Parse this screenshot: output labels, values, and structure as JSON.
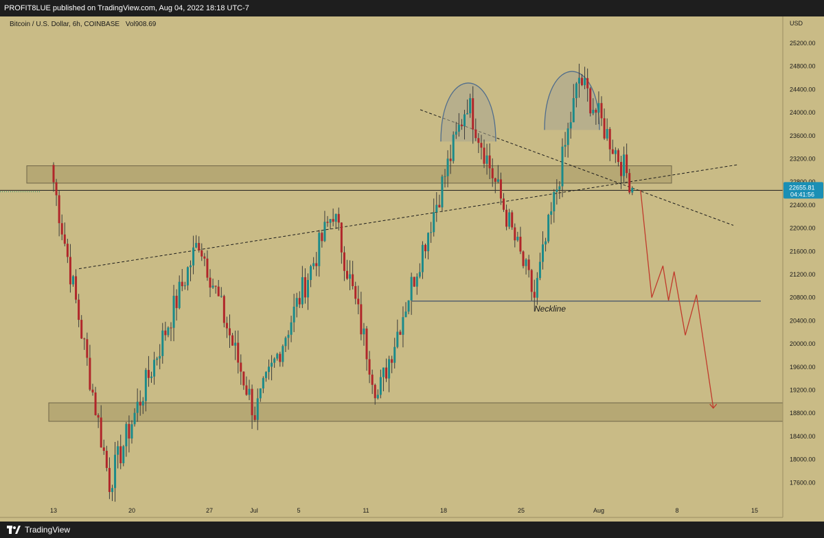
{
  "header": {
    "text": "PROFIT8LUE published on TradingView.com, Aug 04, 2022 18:18 UTC-7"
  },
  "symbol": {
    "pair": "Bitcoin / U.S. Dollar, 6h, COINBASE",
    "vol": "Vol908.69"
  },
  "footer": {
    "brand": "TradingView"
  },
  "colors": {
    "background": "#c9bb86",
    "up_candle": "#1b8a8a",
    "down_candle": "#b0262a",
    "wick": "#3a3a3a",
    "zone_fill": "#b3a571",
    "projection": "#c0392b",
    "price_tag": "#1a8fb5"
  },
  "chart_data": {
    "type": "candlestick",
    "title": "",
    "xlabel": "",
    "ylabel": "",
    "currency_label": "USD",
    "ylim": [
      17300,
      25600
    ],
    "x_ticks": [
      "13",
      "20",
      "27",
      "Jul",
      "5",
      "11",
      "18",
      "25",
      "Aug",
      "8",
      "15"
    ],
    "y_ticks": [
      25200,
      24800,
      24400,
      24000,
      23600,
      23200,
      22800,
      22400,
      22000,
      21600,
      21200,
      20800,
      20400,
      20000,
      19600,
      19200,
      18800,
      18400,
      18000,
      17600
    ],
    "last_price": "22655.81",
    "countdown": "04:41:56",
    "annotations": {
      "neckline_label": "Neckline"
    },
    "zones": [
      {
        "name": "resistance-zone",
        "y_top": 23080,
        "y_bottom": 22780
      },
      {
        "name": "support-zone",
        "y_top": 18980,
        "y_bottom": 18660
      }
    ],
    "key_points": [
      {
        "x": "Jun 13",
        "y": 22800
      },
      {
        "x": "Jun 18",
        "y": 17600
      },
      {
        "x": "Jun 26",
        "y": 21800
      },
      {
        "x": "Jul 1",
        "y": 18800
      },
      {
        "x": "Jul 8",
        "y": 22300
      },
      {
        "x": "Jul 12",
        "y": 19100
      },
      {
        "x": "Jul 20",
        "y": 24200
      },
      {
        "x": "Jul 26",
        "y": 20800
      },
      {
        "x": "Jul 30",
        "y": 24600
      },
      {
        "x": "Aug 4",
        "y": 22655.81
      }
    ],
    "projection_path": [
      {
        "x": "Aug 4",
        "y": 22655.81
      },
      {
        "x": "Aug 5",
        "y": 20800
      },
      {
        "x": "Aug 6",
        "y": 21350
      },
      {
        "x": "Aug 6.5",
        "y": 20750
      },
      {
        "x": "Aug 7",
        "y": 21250
      },
      {
        "x": "Aug 8",
        "y": 20150
      },
      {
        "x": "Aug 9",
        "y": 20850
      },
      {
        "x": "Aug 10.5",
        "y": 18900
      }
    ]
  }
}
